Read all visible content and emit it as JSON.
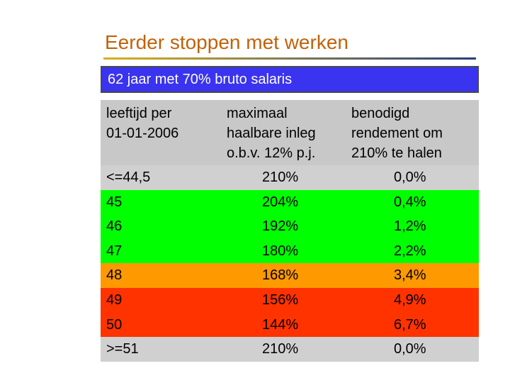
{
  "title": "Eerder stoppen met werken",
  "subtitle": "62 jaar met 70% bruto salaris",
  "header": {
    "col1": "leeftijd per\n01-01-2006",
    "col2": "maximaal\nhaalbare inleg\no.b.v. 12% p.j.",
    "col3": "benodigd\nrendement om\n210% te halen"
  },
  "colors": {
    "header_bg": "#c8c8c8",
    "green": "#00ff00",
    "orange": "#ff9900",
    "red": "#ff3300",
    "light_grey": "#d0d0d0",
    "subtitle_bg": "#3a33f0",
    "title": "#c0620a"
  },
  "rows": [
    {
      "age": "<=44,5",
      "inleg": "210%",
      "rendement": "0,0%",
      "color": "#d0d0d0"
    },
    {
      "age": "45",
      "inleg": "204%",
      "rendement": "0,4%",
      "color": "#00ff00"
    },
    {
      "age": "46",
      "inleg": "192%",
      "rendement": "1,2%",
      "color": "#00ff00"
    },
    {
      "age": "47",
      "inleg": "180%",
      "rendement": "2,2%",
      "color": "#00ff00"
    },
    {
      "age": "48",
      "inleg": "168%",
      "rendement": "3,4%",
      "color": "#ff9900"
    },
    {
      "age": "49",
      "inleg": "156%",
      "rendement": "4,9%",
      "color": "#ff3300"
    },
    {
      "age": "50",
      "inleg": "144%",
      "rendement": "6,7%",
      "color": "#ff3300"
    },
    {
      "age": ">=51",
      "inleg": "210%",
      "rendement": "0,0%",
      "color": "#d0d0d0"
    }
  ]
}
